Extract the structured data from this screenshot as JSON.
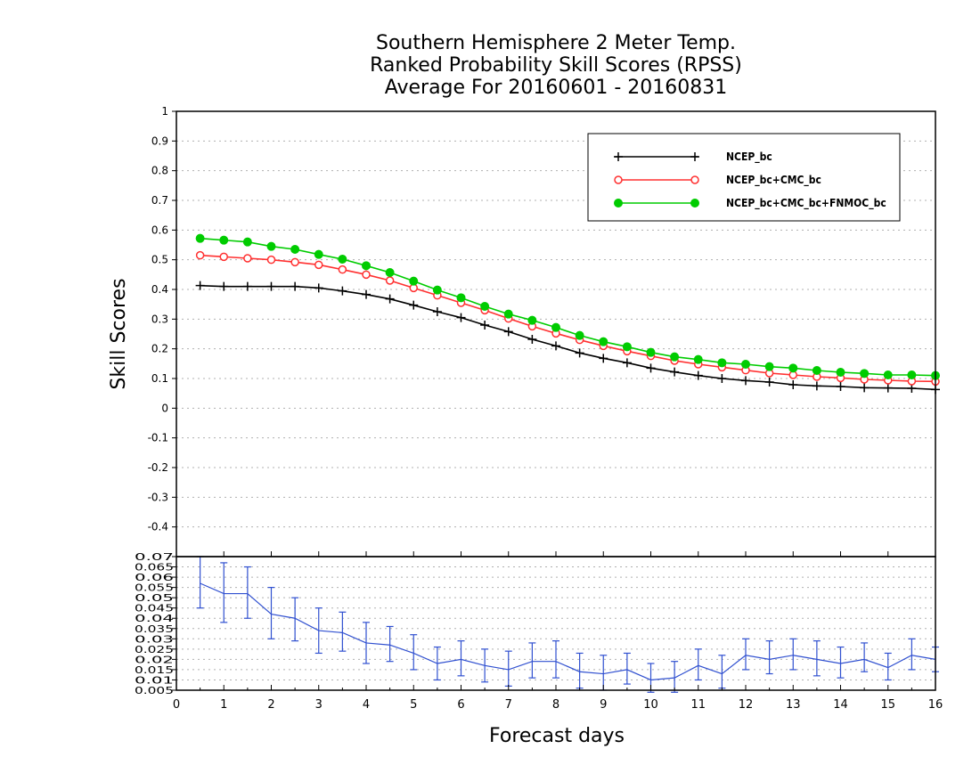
{
  "chart_data": {
    "type": "line",
    "title_lines": [
      "Southern Hemisphere 2 Meter Temp.",
      "Ranked Probability Skill Scores (RPSS)",
      "Average For 20160601 - 20160831"
    ],
    "xlabel": "Forecast days",
    "ylabel": "Skill Scores",
    "xlim": [
      0,
      16
    ],
    "x_ticks": [
      "0",
      "1",
      "2",
      "3",
      "4",
      "5",
      "6",
      "7",
      "8",
      "9",
      "10",
      "11",
      "12",
      "13",
      "14",
      "15",
      "16"
    ],
    "ylim": [
      -0.5,
      1
    ],
    "y_ticks": [
      "-0.4",
      "-0.3",
      "-0.2",
      "-0.1",
      "0",
      "0.1",
      "0.2",
      "0.3",
      "0.4",
      "0.5",
      "0.6",
      "0.7",
      "0.8",
      "0.9",
      "1"
    ],
    "grid": true,
    "legend_position": "top-right",
    "x": [
      0.5,
      1,
      1.5,
      2,
      2.5,
      3,
      3.5,
      4,
      4.5,
      5,
      5.5,
      6,
      6.5,
      7,
      7.5,
      8,
      8.5,
      9,
      9.5,
      10,
      10.5,
      11,
      11.5,
      12,
      12.5,
      13,
      13.5,
      14,
      14.5,
      15,
      15.5,
      16
    ],
    "series": [
      {
        "name": "NCEP_bc",
        "color": "#000000",
        "marker": "plus",
        "values": [
          0.413,
          0.41,
          0.41,
          0.41,
          0.41,
          0.405,
          0.395,
          0.383,
          0.368,
          0.347,
          0.325,
          0.305,
          0.28,
          0.258,
          0.232,
          0.21,
          0.186,
          0.168,
          0.153,
          0.135,
          0.122,
          0.11,
          0.1,
          0.093,
          0.088,
          0.079,
          0.075,
          0.073,
          0.069,
          0.068,
          0.067,
          0.063
        ]
      },
      {
        "name": "NCEP_bc+CMC_bc",
        "color": "#ff3030",
        "marker": "open-circle",
        "values": [
          0.515,
          0.51,
          0.505,
          0.5,
          0.492,
          0.483,
          0.467,
          0.45,
          0.43,
          0.405,
          0.38,
          0.355,
          0.33,
          0.302,
          0.276,
          0.252,
          0.23,
          0.21,
          0.192,
          0.176,
          0.16,
          0.148,
          0.138,
          0.128,
          0.118,
          0.112,
          0.106,
          0.102,
          0.097,
          0.094,
          0.091,
          0.09
        ]
      },
      {
        "name": "NCEP_bc+CMC_bc+FNMOC_bc",
        "color": "#00cc00",
        "marker": "filled-circle",
        "values": [
          0.572,
          0.566,
          0.56,
          0.545,
          0.535,
          0.518,
          0.502,
          0.48,
          0.457,
          0.428,
          0.398,
          0.372,
          0.343,
          0.317,
          0.296,
          0.272,
          0.245,
          0.224,
          0.207,
          0.188,
          0.173,
          0.164,
          0.153,
          0.148,
          0.14,
          0.135,
          0.127,
          0.121,
          0.117,
          0.112,
          0.112,
          0.11
        ]
      }
    ],
    "diff_panel": {
      "ylim": [
        0.005,
        0.07
      ],
      "y_ticks": [
        "0.005",
        "0.01",
        "0.015",
        "0.02",
        "0.025",
        "0.03",
        "0.035",
        "0.04",
        "0.045",
        "0.05",
        "0.055",
        "0.06",
        "0.065",
        "0.07"
      ],
      "color": "#3050d0",
      "values": [
        0.057,
        0.052,
        0.052,
        0.042,
        0.04,
        0.034,
        0.033,
        0.028,
        0.027,
        0.023,
        0.018,
        0.02,
        0.017,
        0.015,
        0.019,
        0.019,
        0.014,
        0.013,
        0.015,
        0.01,
        0.011,
        0.017,
        0.013,
        0.022,
        0.02,
        0.022,
        0.02,
        0.018,
        0.02,
        0.016,
        0.022,
        0.02
      ],
      "err_low": [
        0.045,
        0.038,
        0.04,
        0.03,
        0.029,
        0.023,
        0.024,
        0.018,
        0.019,
        0.015,
        0.01,
        0.012,
        0.009,
        0.007,
        0.011,
        0.011,
        0.006,
        0.005,
        0.008,
        0.004,
        0.004,
        0.01,
        0.006,
        0.015,
        0.013,
        0.015,
        0.012,
        0.011,
        0.014,
        0.01,
        0.015,
        0.014
      ],
      "err_high": [
        0.07,
        0.067,
        0.065,
        0.055,
        0.05,
        0.045,
        0.043,
        0.038,
        0.036,
        0.032,
        0.026,
        0.029,
        0.025,
        0.024,
        0.028,
        0.029,
        0.023,
        0.022,
        0.023,
        0.018,
        0.019,
        0.025,
        0.022,
        0.03,
        0.029,
        0.03,
        0.029,
        0.026,
        0.028,
        0.023,
        0.03,
        0.026
      ]
    }
  }
}
